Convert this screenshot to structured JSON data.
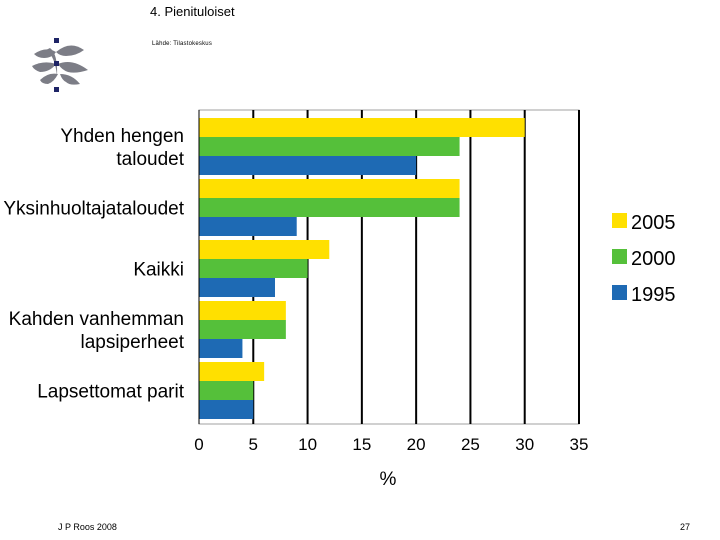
{
  "slide": {
    "title": "4. Pienituloiset",
    "source": "Lähde: Tilastokeskus",
    "footer_author": "J P Roos 2008",
    "footer_page": "27"
  },
  "logo": {
    "icon": "university-flame-logo-icon",
    "color": "#1e2466"
  },
  "chart_data": {
    "type": "bar",
    "orientation": "horizontal",
    "categories": [
      "Yhden hengen taloudet",
      "Yksinhuoltajataloudet",
      "Kaikki",
      "Kahden vanhemman lapsiperheet",
      "Lapsettomat parit"
    ],
    "category_lines": [
      [
        "Yhden hengen",
        "taloudet"
      ],
      [
        "Yksinhuoltajataloudet"
      ],
      [
        "Kaikki"
      ],
      [
        "Kahden vanhemman",
        "lapsiperheet"
      ],
      [
        "Lapsettomat parit"
      ]
    ],
    "series": [
      {
        "name": "2005",
        "color": "#ffe000",
        "values": [
          30,
          24,
          12,
          8,
          6
        ]
      },
      {
        "name": "2000",
        "color": "#55c03a",
        "values": [
          24,
          24,
          10,
          8,
          5
        ]
      },
      {
        "name": "1995",
        "color": "#1e6ab4",
        "values": [
          20,
          9,
          7,
          4,
          5
        ]
      }
    ],
    "xlabel": "%",
    "xlim": [
      0,
      35
    ],
    "xticks": [
      0,
      5,
      10,
      15,
      20,
      25,
      30,
      35
    ],
    "grid": true,
    "legend_position": "right"
  }
}
